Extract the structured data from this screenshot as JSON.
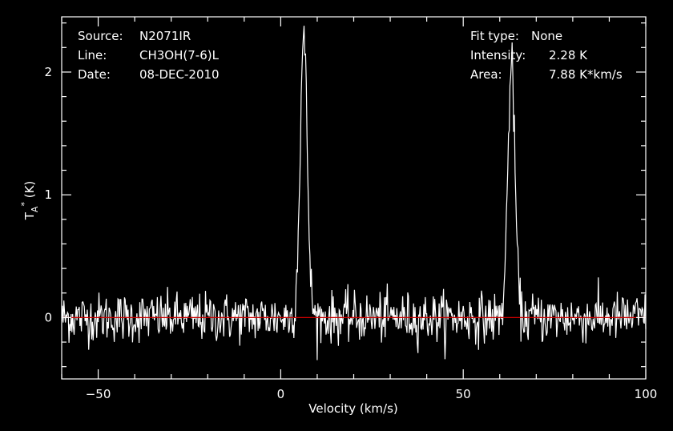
{
  "header_info": {
    "source_label": "Source:",
    "source_value": "N2071IR",
    "line_label": "Line:",
    "line_value": "CH3OH(7-6)L",
    "date_label": "Date:",
    "date_value": "08-DEC-2010",
    "fit_label": "Fit type:",
    "fit_value": "None",
    "intensity_label": "Intensity:",
    "intensity_value": "2.28 K",
    "area_label": "Area:",
    "area_value": "7.88 K*km/s"
  },
  "chart_data": {
    "type": "line",
    "xlabel": "Velocity (km/s)",
    "ylabel": "T_A^* (K)",
    "ylabel_parts": {
      "main": "T",
      "sub": "A",
      "sup": "*",
      "unit": "(K)"
    },
    "xlim": [
      -60,
      100
    ],
    "ylim": [
      -0.5,
      2.45
    ],
    "x_ticks": [
      {
        "value": -50,
        "label": "−50"
      },
      {
        "value": 0,
        "label": "0"
      },
      {
        "value": 50,
        "label": "50"
      },
      {
        "value": 100,
        "label": "100"
      }
    ],
    "y_ticks": [
      {
        "value": 0,
        "label": "0"
      },
      {
        "value": 1,
        "label": "1"
      },
      {
        "value": 2,
        "label": "2"
      }
    ],
    "baseline": {
      "value": 0,
      "color": "#cc0000"
    },
    "noise_rms": 0.1,
    "channel_width": 0.2,
    "peaks": [
      {
        "center": 6.3,
        "peak": 2.28,
        "fwhm": 2.3
      },
      {
        "center": 63.2,
        "peak": 2.05,
        "fwhm": 2.3
      }
    ],
    "colors": {
      "background": "#000000",
      "trace": "#ffffff",
      "axes": "#ffffff",
      "baseline": "#cc0000"
    },
    "grid": false
  }
}
